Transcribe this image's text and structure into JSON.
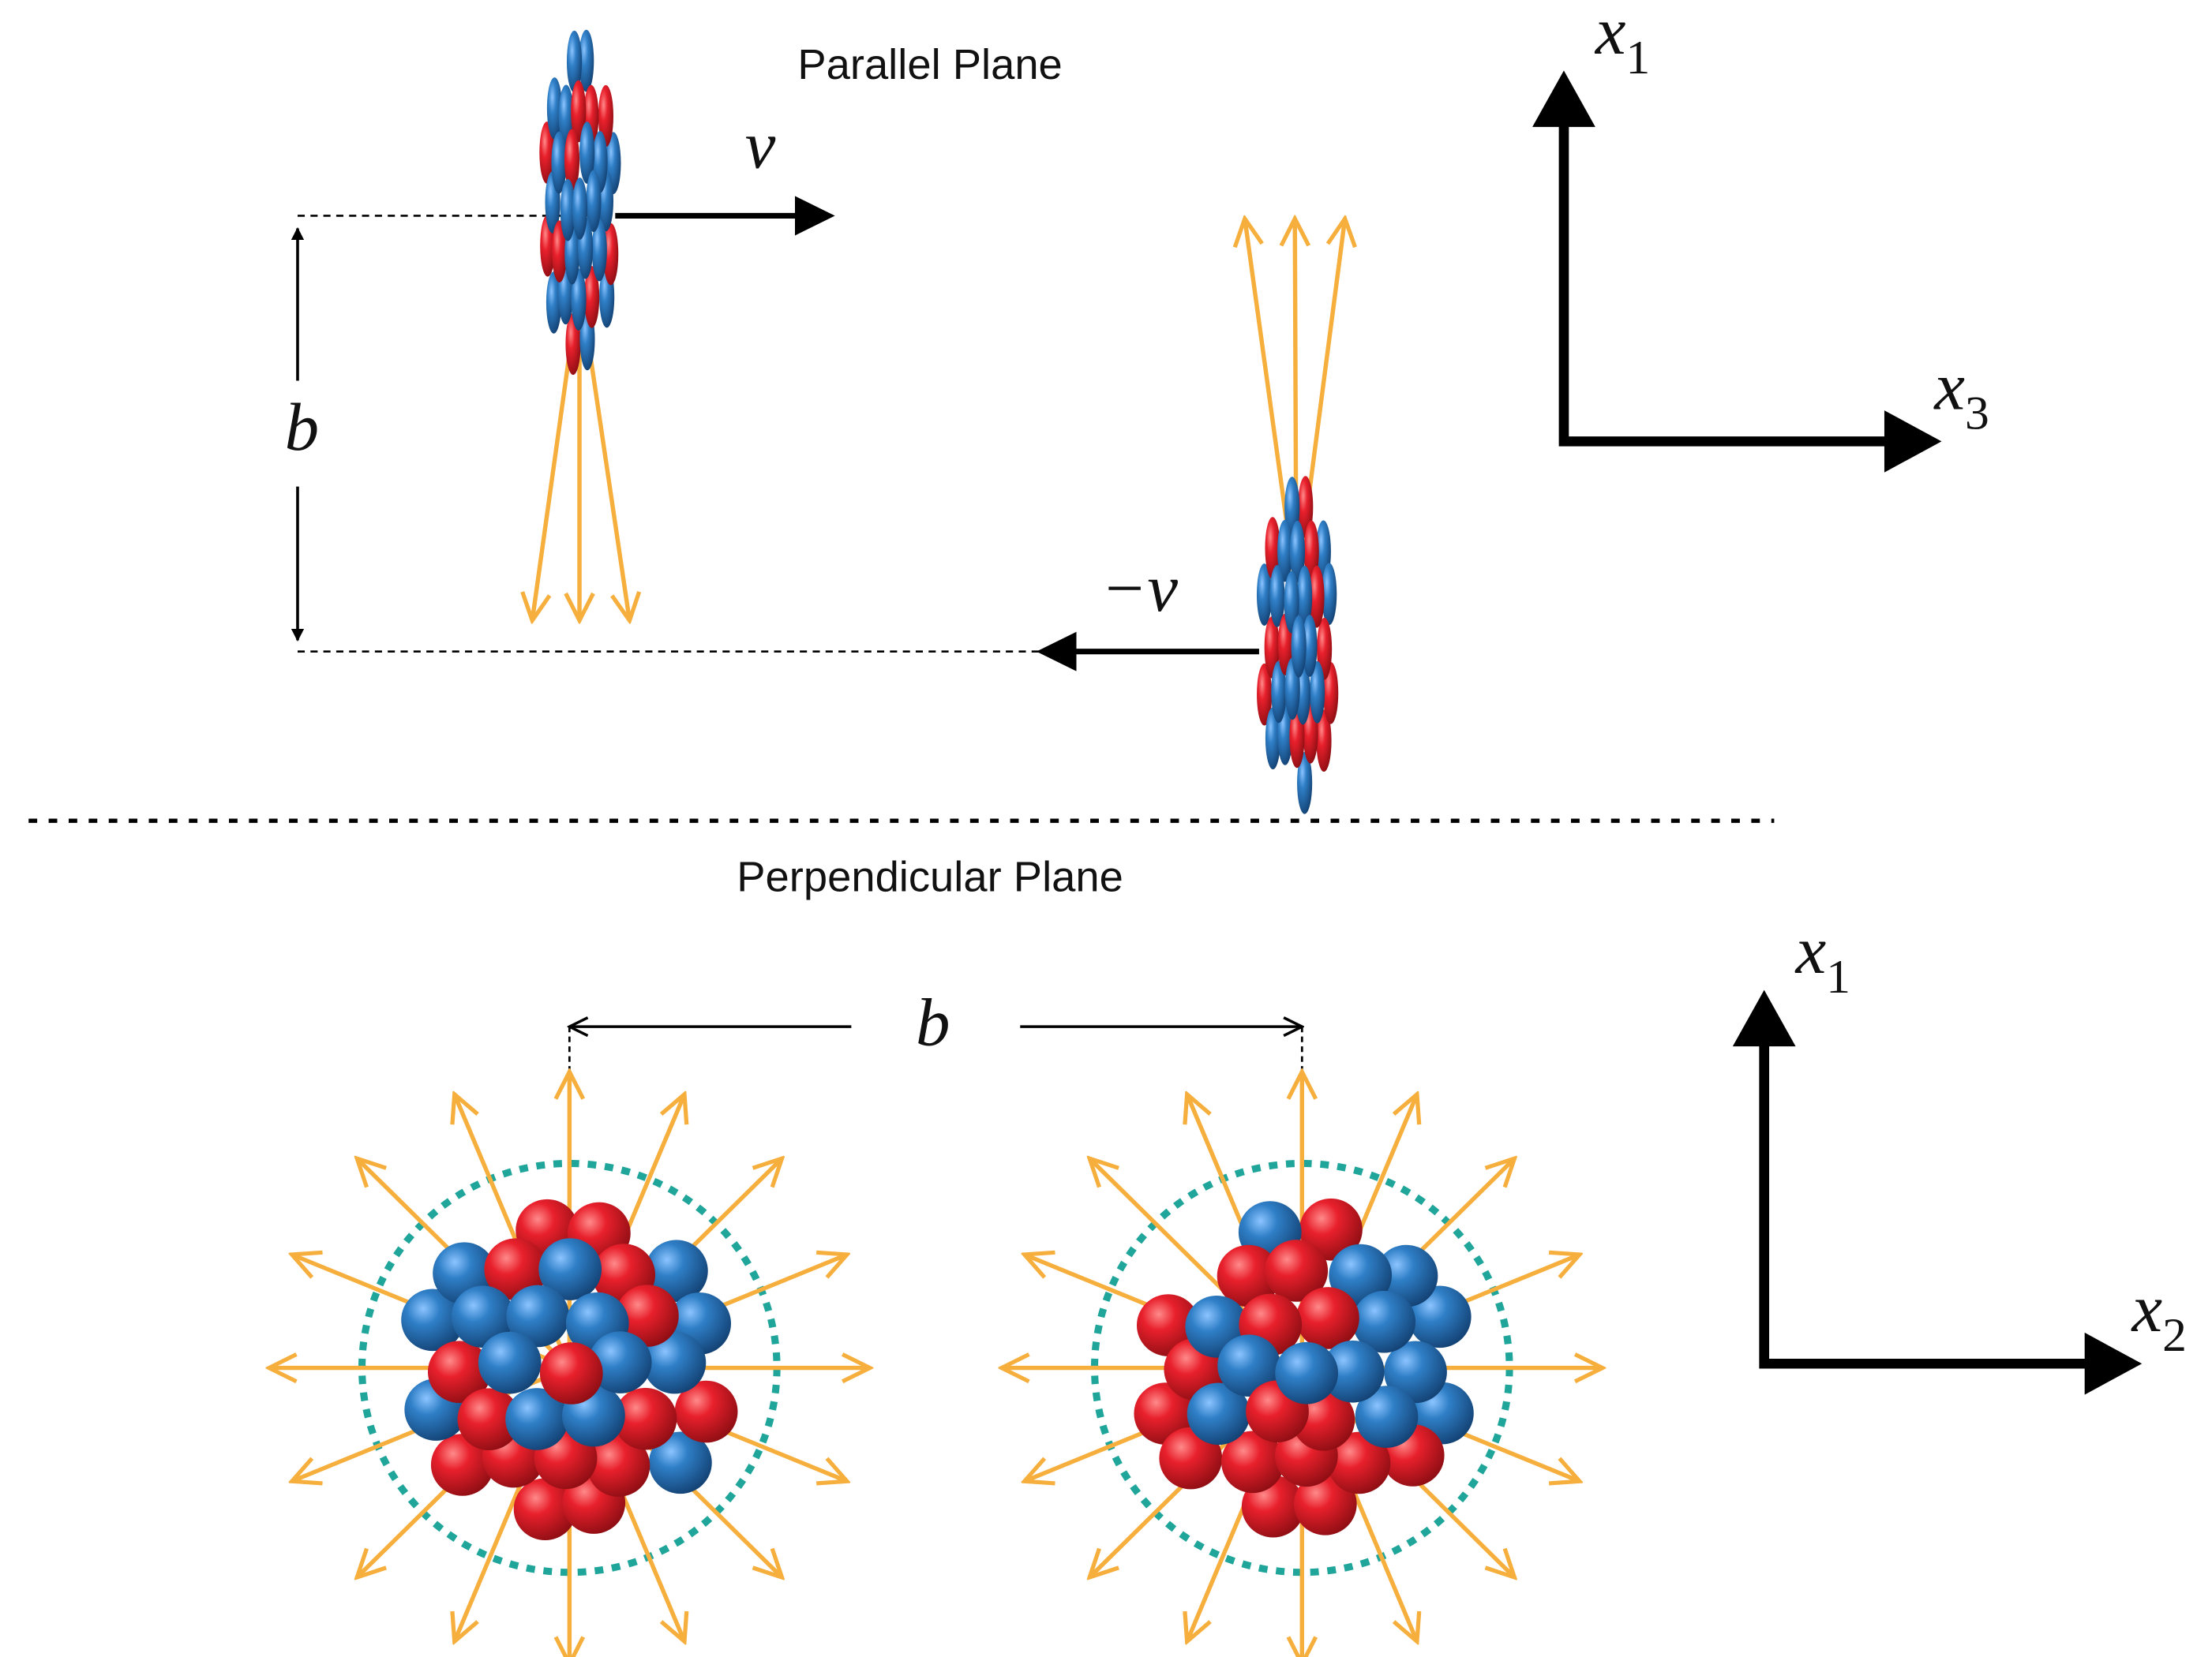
{
  "parallel_plane": {
    "title": "Parallel Plane",
    "velocity_label": "v⃗",
    "reverse_velocity_label": "−v⃗",
    "impact_parameter_label": "b",
    "axes": {
      "vertical": {
        "symbol": "x",
        "subscript": "1"
      },
      "horizontal": {
        "symbol": "x",
        "subscript": "3"
      }
    }
  },
  "perpendicular_plane": {
    "title": "Perpendicular Plane",
    "impact_parameter_label": "b",
    "axes": {
      "vertical": {
        "symbol": "x",
        "subscript": "1"
      },
      "horizontal": {
        "symbol": "x",
        "subscript": "2"
      }
    }
  }
}
